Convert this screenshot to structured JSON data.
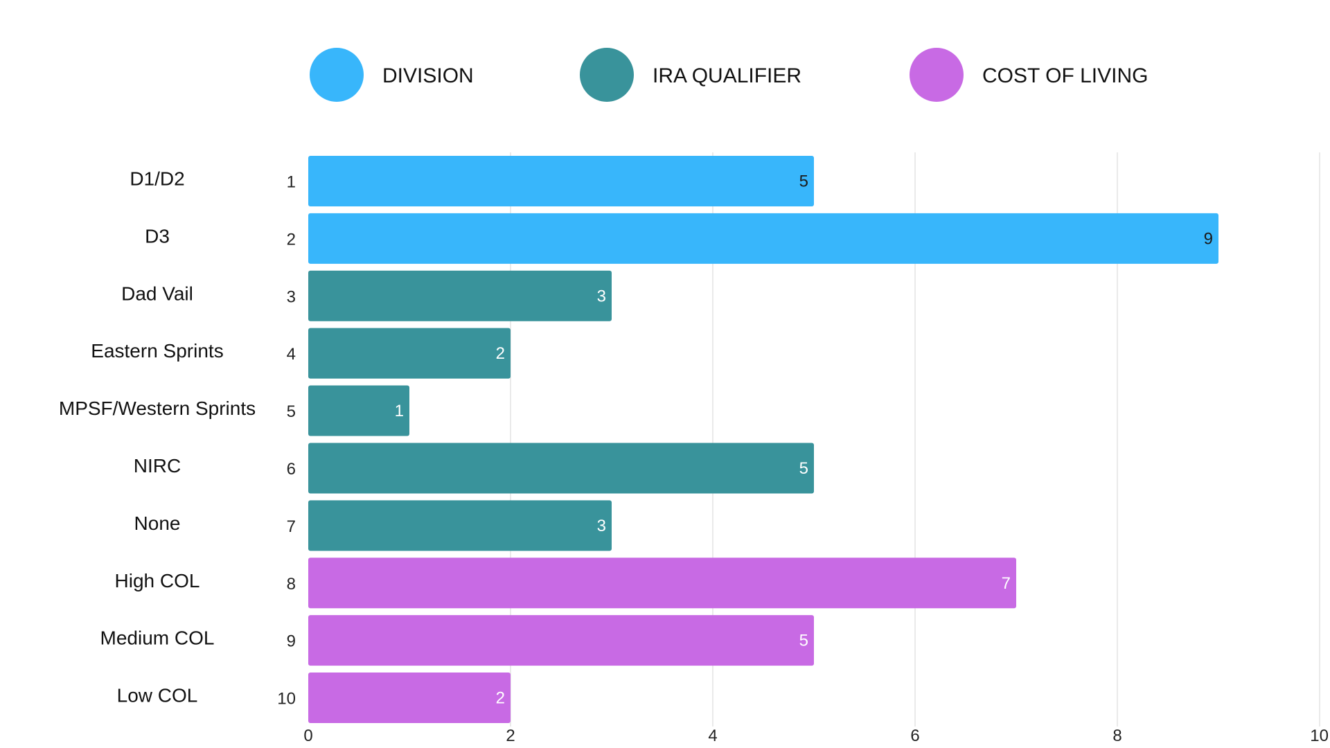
{
  "chart_data": {
    "type": "bar",
    "orientation": "horizontal",
    "title": "",
    "xlabel": "",
    "ylabel": "",
    "xlim": [
      0,
      10
    ],
    "x_ticks": [
      "0",
      "2",
      "4",
      "6",
      "8",
      "10"
    ],
    "grid": true,
    "legend_position": "top",
    "legend": [
      {
        "key": "division",
        "label": "DIVISION",
        "color": "#38b6fb"
      },
      {
        "key": "ira",
        "label": "IRA QUALIFIER",
        "color": "#39939b"
      },
      {
        "key": "col",
        "label": "COST OF LIVING",
        "color": "#c86ae4"
      }
    ],
    "bars": [
      {
        "index": "1",
        "category": "D1/D2",
        "value": 5,
        "group": "division",
        "value_label": "5",
        "label_color": "#1a1a1a"
      },
      {
        "index": "2",
        "category": "D3",
        "value": 9,
        "group": "division",
        "value_label": "9",
        "label_color": "#1a1a1a"
      },
      {
        "index": "3",
        "category": "Dad Vail",
        "value": 3,
        "group": "ira",
        "value_label": "3",
        "label_color": "#ffffff"
      },
      {
        "index": "4",
        "category": "Eastern Sprints",
        "value": 2,
        "group": "ira",
        "value_label": "2",
        "label_color": "#ffffff"
      },
      {
        "index": "5",
        "category": "MPSF/Western Sprints",
        "value": 1,
        "group": "ira",
        "value_label": "1",
        "label_color": "#ffffff"
      },
      {
        "index": "6",
        "category": "NIRC",
        "value": 5,
        "group": "ira",
        "value_label": "5",
        "label_color": "#ffffff"
      },
      {
        "index": "7",
        "category": "None",
        "value": 3,
        "group": "ira",
        "value_label": "3",
        "label_color": "#ffffff"
      },
      {
        "index": "8",
        "category": "High COL",
        "value": 7,
        "group": "col",
        "value_label": "7",
        "label_color": "#ffffff"
      },
      {
        "index": "9",
        "category": "Medium COL",
        "value": 5,
        "group": "col",
        "value_label": "5",
        "label_color": "#ffffff"
      },
      {
        "index": "10",
        "category": "Low COL",
        "value": 2,
        "group": "col",
        "value_label": "2",
        "label_color": "#ffffff"
      }
    ]
  }
}
